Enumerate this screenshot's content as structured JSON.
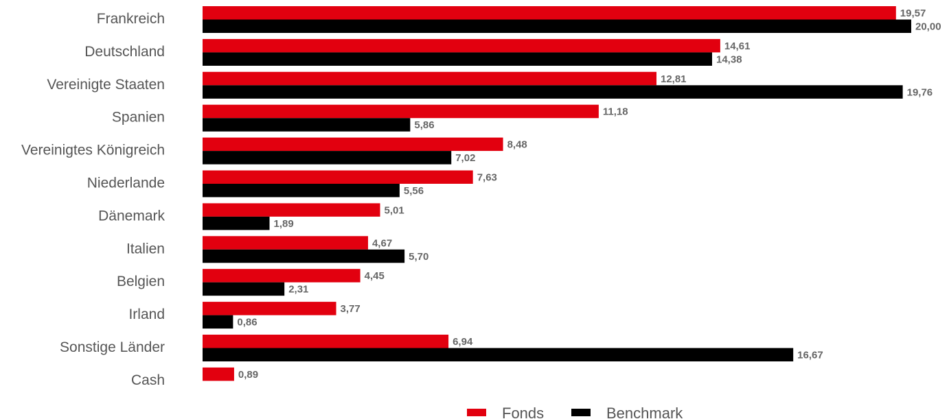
{
  "chart_data": {
    "type": "bar",
    "orientation": "horizontal",
    "categories": [
      "Frankreich",
      "Deutschland",
      "Vereinigte Staaten",
      "Spanien",
      "Vereinigtes Königreich",
      "Niederlande",
      "Dänemark",
      "Italien",
      "Belgien",
      "Irland",
      "Sonstige Länder",
      "Cash"
    ],
    "series": [
      {
        "name": "Fonds",
        "color": "#e2000f",
        "values": [
          19.57,
          14.61,
          12.81,
          11.18,
          8.48,
          7.63,
          5.01,
          4.67,
          4.45,
          3.77,
          6.94,
          0.89
        ],
        "labels": [
          "19,57",
          "14,61",
          "12,81",
          "11,18",
          "8,48",
          "7,63",
          "5,01",
          "4,67",
          "4,45",
          "3,77",
          "6,94",
          "0,89"
        ]
      },
      {
        "name": "Benchmark",
        "color": "#000000",
        "values": [
          20.0,
          14.38,
          19.76,
          5.86,
          7.02,
          5.56,
          1.89,
          5.7,
          2.31,
          0.86,
          16.67,
          null
        ],
        "labels": [
          "20,00",
          "14,38",
          "19,76",
          "5,86",
          "7,02",
          "5,56",
          "1,89",
          "5,70",
          "2,31",
          "0,86",
          "16,67",
          null
        ]
      }
    ],
    "xlim": [
      0,
      20
    ],
    "legend": "bottom-center",
    "grid": false
  }
}
